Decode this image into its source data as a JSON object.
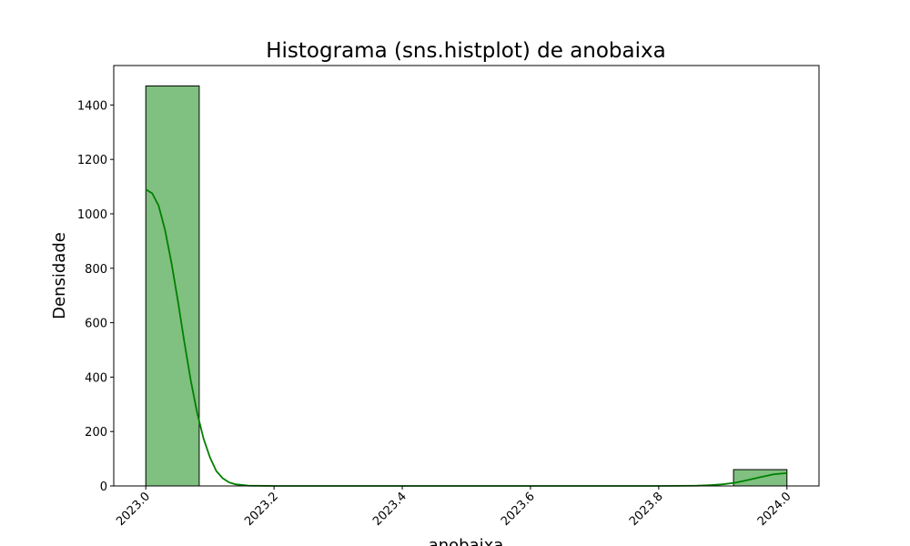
{
  "chart_data": {
    "type": "bar",
    "title": "Histograma (sns.histplot) de anobaixa",
    "xlabel": "anobaixa",
    "ylabel": "Densidade",
    "xlim": [
      2022.95,
      2024.05
    ],
    "ylim": [
      0,
      1545
    ],
    "x_ticks": [
      "2023.0",
      "2023.2",
      "2023.4",
      "2023.6",
      "2023.8",
      "2024.0"
    ],
    "y_ticks": [
      "0",
      "200",
      "400",
      "600",
      "800",
      "1000",
      "1200",
      "1400"
    ],
    "bins": [
      {
        "start": 2023.0,
        "end": 2023.0833,
        "count": 1470
      },
      {
        "start": 2023.0833,
        "end": 2023.1667,
        "count": 0
      },
      {
        "start": 2023.1667,
        "end": 2023.25,
        "count": 0
      },
      {
        "start": 2023.25,
        "end": 2023.3333,
        "count": 0
      },
      {
        "start": 2023.3333,
        "end": 2023.4167,
        "count": 0
      },
      {
        "start": 2023.4167,
        "end": 2023.5,
        "count": 0
      },
      {
        "start": 2023.5,
        "end": 2023.5833,
        "count": 0
      },
      {
        "start": 2023.5833,
        "end": 2023.6667,
        "count": 0
      },
      {
        "start": 2023.6667,
        "end": 2023.75,
        "count": 0
      },
      {
        "start": 2023.75,
        "end": 2023.8333,
        "count": 0
      },
      {
        "start": 2023.8333,
        "end": 2023.9167,
        "count": 0
      },
      {
        "start": 2023.9167,
        "end": 2024.0,
        "count": 60
      }
    ],
    "kde": {
      "x": [
        2023.0,
        2023.01,
        2023.02,
        2023.03,
        2023.04,
        2023.05,
        2023.06,
        2023.07,
        2023.08,
        2023.09,
        2023.1,
        2023.11,
        2023.12,
        2023.13,
        2023.14,
        2023.16,
        2023.2,
        2023.4,
        2023.6,
        2023.8,
        2023.86,
        2023.88,
        2023.9,
        2023.92,
        2023.94,
        2023.96,
        2023.98,
        2024.0
      ],
      "y": [
        1090,
        1075,
        1030,
        940,
        820,
        680,
        530,
        390,
        270,
        175,
        105,
        55,
        28,
        13,
        6,
        1,
        0,
        0,
        0,
        0,
        1,
        3,
        6,
        12,
        22,
        33,
        43,
        47
      ]
    },
    "colors": {
      "bar_fill": "#80c080",
      "bar_edge": "#000000",
      "kde_line": "#008000"
    },
    "grid": false,
    "legend": "none"
  }
}
